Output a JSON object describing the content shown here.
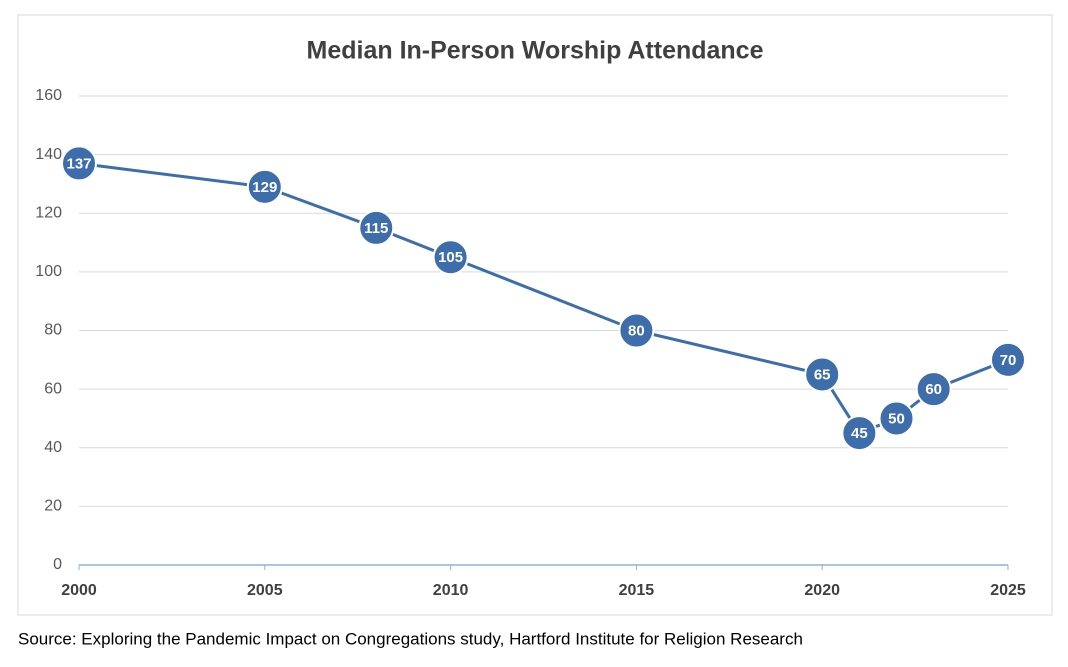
{
  "chart_data": {
    "type": "line",
    "title": "Median In-Person Worship Attendance",
    "x": [
      2000,
      2005,
      2008,
      2010,
      2015,
      2020,
      2021,
      2022,
      2023,
      2025
    ],
    "values": [
      137,
      129,
      115,
      105,
      80,
      65,
      45,
      50,
      60,
      70
    ],
    "color": "#3d6eab",
    "xlim": [
      2000,
      2025
    ],
    "xticks": [
      2000,
      2005,
      2010,
      2015,
      2020,
      2025
    ],
    "ylim": [
      0,
      160
    ],
    "yticks": [
      0,
      20,
      40,
      60,
      80,
      100,
      120,
      140,
      160
    ],
    "grid": true
  },
  "source": "Source: Exploring the Pandemic Impact on Congregations study, Hartford Institute for Religion Research"
}
